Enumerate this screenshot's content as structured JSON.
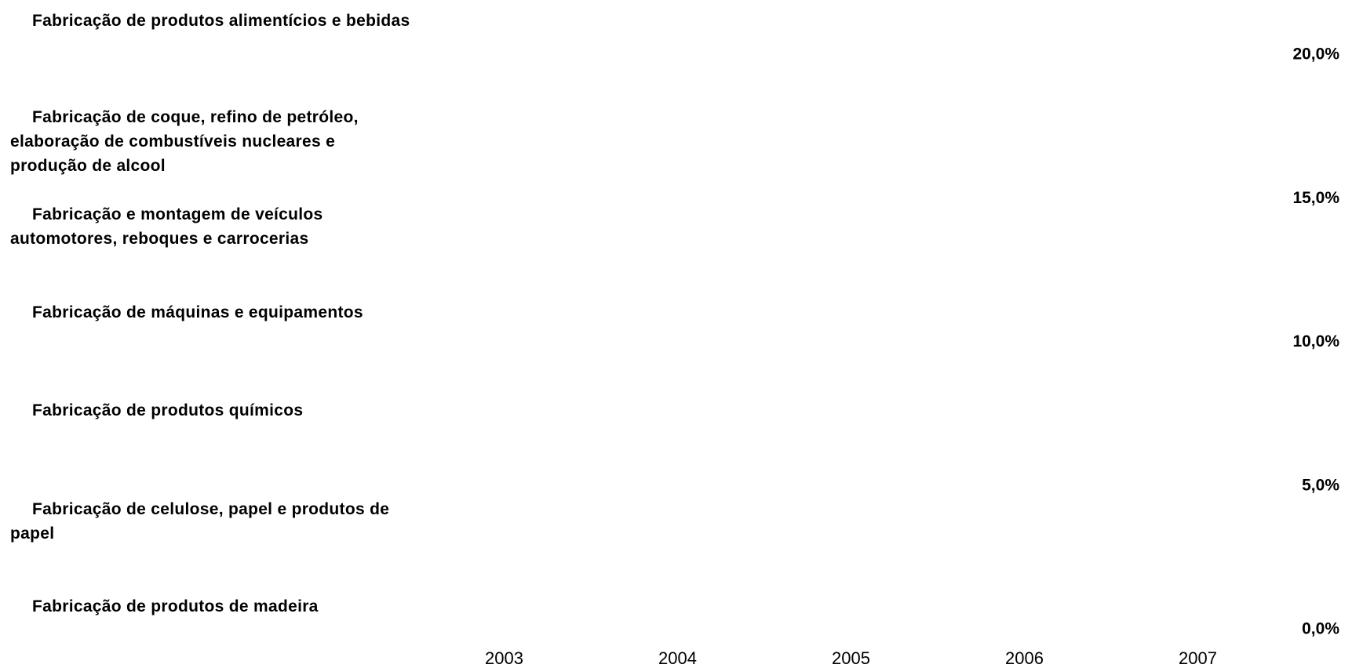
{
  "chart_data": {
    "type": "line",
    "categories": [
      "2003",
      "2004",
      "2005",
      "2006",
      "2007"
    ],
    "series": [
      {
        "name": "Fabricação de produtos alimentícios e bebidas",
        "values": [
          null,
          null,
          null,
          null,
          null
        ]
      },
      {
        "name": "Fabricação de coque, refino de petróleo, elaboração de combustíveis nucleares e produção de alcool",
        "values": [
          null,
          null,
          null,
          null,
          null
        ]
      },
      {
        "name": "Fabricação e montagem de veículos automotores, reboques e carrocerias",
        "values": [
          null,
          null,
          null,
          null,
          null
        ]
      },
      {
        "name": "Fabricação de máquinas e equipamentos",
        "values": [
          null,
          null,
          null,
          null,
          null
        ]
      },
      {
        "name": "Fabricação de produtos químicos",
        "values": [
          null,
          null,
          null,
          null,
          null
        ]
      },
      {
        "name": "Fabricação de celulose, papel e produtos de papel",
        "values": [
          null,
          null,
          null,
          null,
          null
        ]
      },
      {
        "name": "Fabricação de produtos de madeira",
        "values": [
          null,
          null,
          null,
          null,
          null
        ]
      }
    ],
    "ylim": [
      0,
      20
    ],
    "yticks": [
      {
        "value": 0,
        "label": "0,0%"
      },
      {
        "value": 5,
        "label": "5,0%"
      },
      {
        "value": 10,
        "label": "10,0%"
      },
      {
        "value": 15,
        "label": "15,0%"
      },
      {
        "value": 20,
        "label": "20,0%"
      }
    ],
    "yaxis_side": "right",
    "grid": false,
    "legend": "left"
  }
}
